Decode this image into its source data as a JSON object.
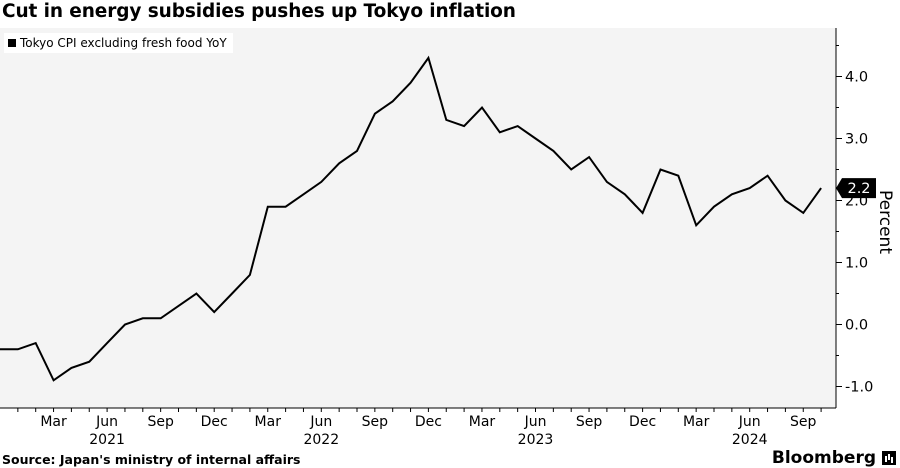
{
  "title": "Cut in energy subsidies pushes up Tokyo inflation",
  "source": "Source: Japan's ministry of internal affairs",
  "brand": "Bloomberg",
  "chart_data": {
    "type": "line",
    "title": "Cut in energy subsidies pushes up Tokyo inflation",
    "xlabel": "",
    "ylabel": "Percent",
    "ylim": [
      -1.4,
      4.8
    ],
    "y_ticks": [
      "4.0",
      "3.0",
      "2.0",
      "1.0",
      "0.0",
      "-1.0"
    ],
    "y_tick_values": [
      4,
      3,
      2,
      1,
      0,
      -1
    ],
    "x_tick_months": [
      "Mar",
      "Jun",
      "Sep",
      "Dec",
      "Mar",
      "Jun",
      "Sep",
      "Dec",
      "Mar",
      "Jun",
      "Sep",
      "Dec",
      "Mar",
      "Jun",
      "Sep"
    ],
    "x_tick_dates": [
      "2021-03",
      "2021-06",
      "2021-09",
      "2021-12",
      "2022-03",
      "2022-06",
      "2022-09",
      "2022-12",
      "2023-03",
      "2023-06",
      "2023-09",
      "2023-12",
      "2024-03",
      "2024-06",
      "2024-09"
    ],
    "year_labels": [
      {
        "label": "2021",
        "date": "2021-06"
      },
      {
        "label": "2022",
        "date": "2022-06"
      },
      {
        "label": "2023",
        "date": "2023-06"
      },
      {
        "label": "2024",
        "date": "2024-06"
      }
    ],
    "last_value_label": "2.2",
    "line_color": "#000000",
    "background_color": "#f4f4f4",
    "legend_position": "top-left",
    "grid": false,
    "series": [
      {
        "name": "Tokyo CPI excluding fresh food YoY",
        "x": [
          "2020-12",
          "2021-01",
          "2021-02",
          "2021-03",
          "2021-04",
          "2021-05",
          "2021-06",
          "2021-07",
          "2021-08",
          "2021-09",
          "2021-10",
          "2021-11",
          "2021-12",
          "2022-01",
          "2022-02",
          "2022-03",
          "2022-04",
          "2022-05",
          "2022-06",
          "2022-07",
          "2022-08",
          "2022-09",
          "2022-10",
          "2022-11",
          "2022-12",
          "2023-01",
          "2023-02",
          "2023-03",
          "2023-04",
          "2023-05",
          "2023-06",
          "2023-07",
          "2023-08",
          "2023-09",
          "2023-10",
          "2023-11",
          "2023-12",
          "2024-01",
          "2024-02",
          "2024-03",
          "2024-04",
          "2024-05",
          "2024-06",
          "2024-07",
          "2024-08",
          "2024-09",
          "2024-10"
        ],
        "values": [
          -0.4,
          -0.4,
          -0.3,
          -0.9,
          -0.7,
          -0.6,
          -0.3,
          0.0,
          0.1,
          0.1,
          0.3,
          0.5,
          0.2,
          0.5,
          0.8,
          1.9,
          1.9,
          2.1,
          2.3,
          2.6,
          2.8,
          3.4,
          3.6,
          3.9,
          4.3,
          3.3,
          3.2,
          3.5,
          3.1,
          3.2,
          3.0,
          2.8,
          2.5,
          2.7,
          2.3,
          2.1,
          1.8,
          2.5,
          2.4,
          1.6,
          1.9,
          2.1,
          2.2,
          2.4,
          2.0,
          1.8,
          2.2
        ]
      }
    ]
  }
}
